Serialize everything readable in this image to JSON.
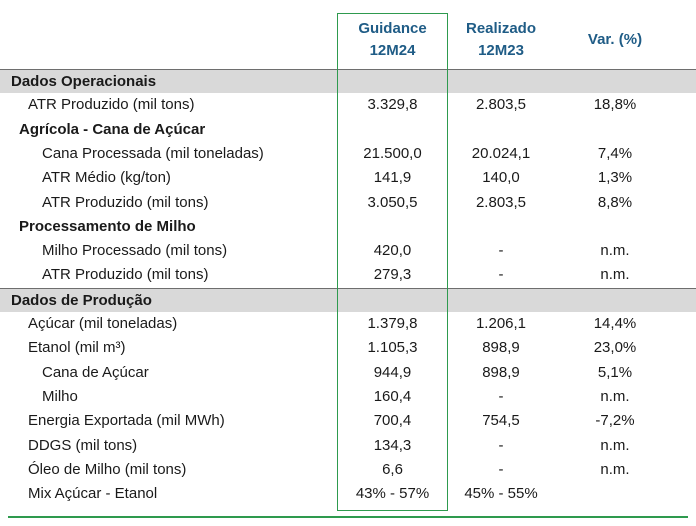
{
  "header": {
    "guidance": [
      "Guidance",
      "12M24"
    ],
    "realizado": [
      "Realizado",
      "12M23"
    ],
    "var": "Var. (%)"
  },
  "rows": [
    {
      "label": "Dados Operacionais",
      "style": "band",
      "indent": 0,
      "g": "",
      "r": "",
      "v": ""
    },
    {
      "label": "ATR Produzido (mil tons)",
      "style": "normal",
      "indent": 1,
      "g": "3.329,8",
      "r": "2.803,5",
      "v": "18,8%"
    },
    {
      "label": "Agrícola - Cana de Açúcar",
      "style": "section",
      "indent": 0,
      "g": "",
      "r": "",
      "v": ""
    },
    {
      "label": "Cana Processada (mil toneladas)",
      "style": "normal",
      "indent": 2,
      "g": "21.500,0",
      "r": "20.024,1",
      "v": "7,4%"
    },
    {
      "label": "ATR Médio (kg/ton)",
      "style": "normal",
      "indent": 2,
      "g": "141,9",
      "r": "140,0",
      "v": "1,3%"
    },
    {
      "label": "ATR Produzido (mil tons)",
      "style": "normal",
      "indent": 2,
      "g": "3.050,5",
      "r": "2.803,5",
      "v": "8,8%"
    },
    {
      "label": "Processamento de Milho",
      "style": "section",
      "indent": 0,
      "g": "",
      "r": "",
      "v": ""
    },
    {
      "label": "Milho Processado (mil tons)",
      "style": "normal",
      "indent": 2,
      "g": "420,0",
      "r": "-",
      "v": "n.m."
    },
    {
      "label": "ATR Produzido (mil tons)",
      "style": "normal",
      "indent": 2,
      "g": "279,3",
      "r": "-",
      "v": "n.m."
    },
    {
      "label": "Dados de Produção",
      "style": "band",
      "indent": 0,
      "g": "",
      "r": "",
      "v": ""
    },
    {
      "label": "Açúcar (mil toneladas)",
      "style": "normal",
      "indent": 1,
      "g": "1.379,8",
      "r": "1.206,1",
      "v": "14,4%"
    },
    {
      "label": "Etanol (mil m³)",
      "style": "normal",
      "indent": 1,
      "g": "1.105,3",
      "r": "898,9",
      "v": "23,0%"
    },
    {
      "label": "Cana de Açúcar",
      "style": "normal",
      "indent": 2,
      "g": "944,9",
      "r": "898,9",
      "v": "5,1%"
    },
    {
      "label": "Milho",
      "style": "normal",
      "indent": 2,
      "g": "160,4",
      "r": "-",
      "v": "n.m."
    },
    {
      "label": "Energia Exportada (mil MWh)",
      "style": "normal",
      "indent": 1,
      "g": "700,4",
      "r": "754,5",
      "v": "-7,2%"
    },
    {
      "label": "DDGS (mil tons)",
      "style": "normal",
      "indent": 1,
      "g": "134,3",
      "r": "-",
      "v": "n.m."
    },
    {
      "label": "Óleo de Milho (mil tons)",
      "style": "normal",
      "indent": 1,
      "g": "6,6",
      "r": "-",
      "v": "n.m."
    },
    {
      "label": "Mix Açúcar - Etanol",
      "style": "normal",
      "indent": 1,
      "g": "43% - 57%",
      "r": "45% - 55%",
      "v": ""
    }
  ]
}
